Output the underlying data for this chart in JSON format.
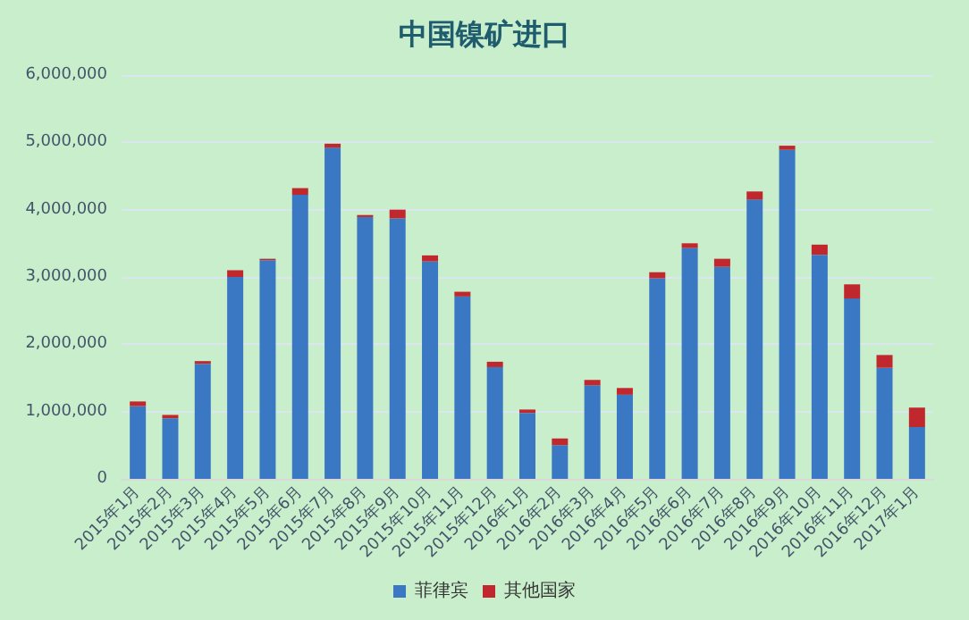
{
  "chart_data": {
    "type": "bar",
    "title": "中国镍矿进口",
    "stacked": true,
    "categories": [
      "2015年1月",
      "2015年2月",
      "2015年3月",
      "2015年4月",
      "2015年5月",
      "2015年6月",
      "2015年7月",
      "2015年8月",
      "2015年9月",
      "2015年10月",
      "2015年11月",
      "2015年12月",
      "2016年1月",
      "2016年2月",
      "2016年3月",
      "2016年4月",
      "2016年5月",
      "2016年6月",
      "2016年7月",
      "2016年8月",
      "2016年9月",
      "2016年10月",
      "2016年11月",
      "2016年12月",
      "2017年1月"
    ],
    "series": [
      {
        "name": "菲律宾",
        "color": "#3a78c3",
        "values": [
          1080000,
          900000,
          1710000,
          3000000,
          3250000,
          4220000,
          4920000,
          3890000,
          3870000,
          3230000,
          2710000,
          1660000,
          980000,
          500000,
          1390000,
          1250000,
          2980000,
          3430000,
          3150000,
          4150000,
          4890000,
          3330000,
          2680000,
          1650000,
          770000
        ]
      },
      {
        "name": "其他国家",
        "color": "#c0282d",
        "values": [
          70000,
          50000,
          40000,
          100000,
          20000,
          100000,
          60000,
          30000,
          130000,
          90000,
          70000,
          80000,
          50000,
          100000,
          80000,
          100000,
          90000,
          70000,
          120000,
          120000,
          60000,
          150000,
          210000,
          190000,
          290000
        ]
      }
    ],
    "ylim": [
      0,
      6000000
    ],
    "yticks": [
      0,
      {
        "value": 1000000,
        "label": "1,000,000"
      },
      {
        "value": 2000000,
        "label": "2,000,000"
      },
      {
        "value": 3000000,
        "label": "3,000,000"
      },
      {
        "value": 4000000,
        "label": "4,000,000"
      },
      {
        "value": 5000000,
        "label": "5,000,000"
      },
      {
        "value": 6000000,
        "label": "6,000,000"
      }
    ],
    "grid": "y",
    "legend": "bottom"
  }
}
